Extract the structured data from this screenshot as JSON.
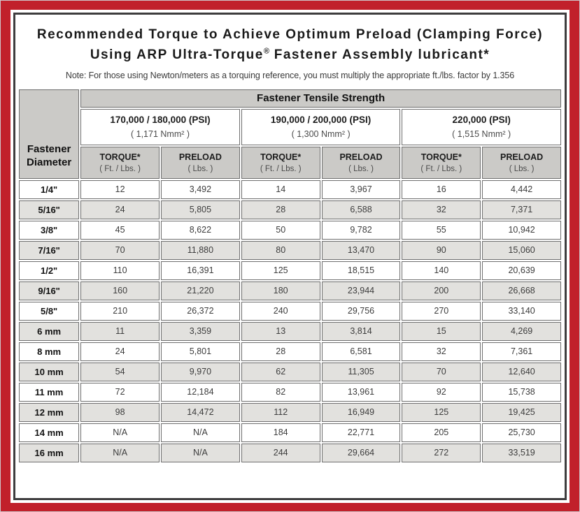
{
  "colors": {
    "frame_red": "#c1202b",
    "doc_border": "#3e3d3e",
    "header_gray": "#cbcac7",
    "stripe_gray": "#e2e1de",
    "cell_border": "#6e6e6e"
  },
  "document": {
    "title_line1": "Recommended Torque to Achieve Optimum Preload (Clamping Force)",
    "title_line2_before_reg": "Using ARP Ultra-Torque",
    "title_line2_reg": "®",
    "title_line2_after_reg": " Fastener Assembly lubricant*",
    "note": "Note: For those using Newton/meters as a torquing reference, you must multiply the appropriate ft./lbs. factor by 1.356"
  },
  "table": {
    "tensile_header": "Fastener Tensile Strength",
    "diameter_header_line1": "Fastener",
    "diameter_header_line2": "Diameter",
    "strength_groups": [
      {
        "psi": "170,000 / 180,000 (PSI)",
        "nmm": "( 1,171 Nmm² )"
      },
      {
        "psi": "190,000 / 200,000 (PSI)",
        "nmm": "( 1,300 Nmm² )"
      },
      {
        "psi": "220,000 (PSI)",
        "nmm": "( 1,515 Nmm² )"
      }
    ],
    "column_headers": [
      {
        "title": "TORQUE*",
        "sub": "( Ft. / Lbs. )"
      },
      {
        "title": "PRELOAD",
        "sub": "( Lbs. )"
      },
      {
        "title": "TORQUE*",
        "sub": "( Ft. / Lbs. )"
      },
      {
        "title": "PRELOAD",
        "sub": "( Lbs. )"
      },
      {
        "title": "TORQUE*",
        "sub": "( Ft. / Lbs. )"
      },
      {
        "title": "PRELOAD",
        "sub": "( Lbs. )"
      }
    ],
    "rows": [
      {
        "diameter": "1/4\"",
        "values": [
          "12",
          "3,492",
          "14",
          "3,967",
          "16",
          "4,442"
        ]
      },
      {
        "diameter": "5/16\"",
        "values": [
          "24",
          "5,805",
          "28",
          "6,588",
          "32",
          "7,371"
        ]
      },
      {
        "diameter": "3/8\"",
        "values": [
          "45",
          "8,622",
          "50",
          "9,782",
          "55",
          "10,942"
        ]
      },
      {
        "diameter": "7/16\"",
        "values": [
          "70",
          "11,880",
          "80",
          "13,470",
          "90",
          "15,060"
        ]
      },
      {
        "diameter": "1/2\"",
        "values": [
          "110",
          "16,391",
          "125",
          "18,515",
          "140",
          "20,639"
        ]
      },
      {
        "diameter": "9/16\"",
        "values": [
          "160",
          "21,220",
          "180",
          "23,944",
          "200",
          "26,668"
        ]
      },
      {
        "diameter": "5/8\"",
        "values": [
          "210",
          "26,372",
          "240",
          "29,756",
          "270",
          "33,140"
        ]
      },
      {
        "diameter": "6 mm",
        "values": [
          "11",
          "3,359",
          "13",
          "3,814",
          "15",
          "4,269"
        ]
      },
      {
        "diameter": "8 mm",
        "values": [
          "24",
          "5,801",
          "28",
          "6,581",
          "32",
          "7,361"
        ]
      },
      {
        "diameter": "10 mm",
        "values": [
          "54",
          "9,970",
          "62",
          "11,305",
          "70",
          "12,640"
        ]
      },
      {
        "diameter": "11 mm",
        "values": [
          "72",
          "12,184",
          "82",
          "13,961",
          "92",
          "15,738"
        ]
      },
      {
        "diameter": "12 mm",
        "values": [
          "98",
          "14,472",
          "112",
          "16,949",
          "125",
          "19,425"
        ]
      },
      {
        "diameter": "14 mm",
        "values": [
          "N/A",
          "N/A",
          "184",
          "22,771",
          "205",
          "25,730"
        ]
      },
      {
        "diameter": "16 mm",
        "values": [
          "N/A",
          "N/A",
          "244",
          "29,664",
          "272",
          "33,519"
        ]
      }
    ]
  }
}
